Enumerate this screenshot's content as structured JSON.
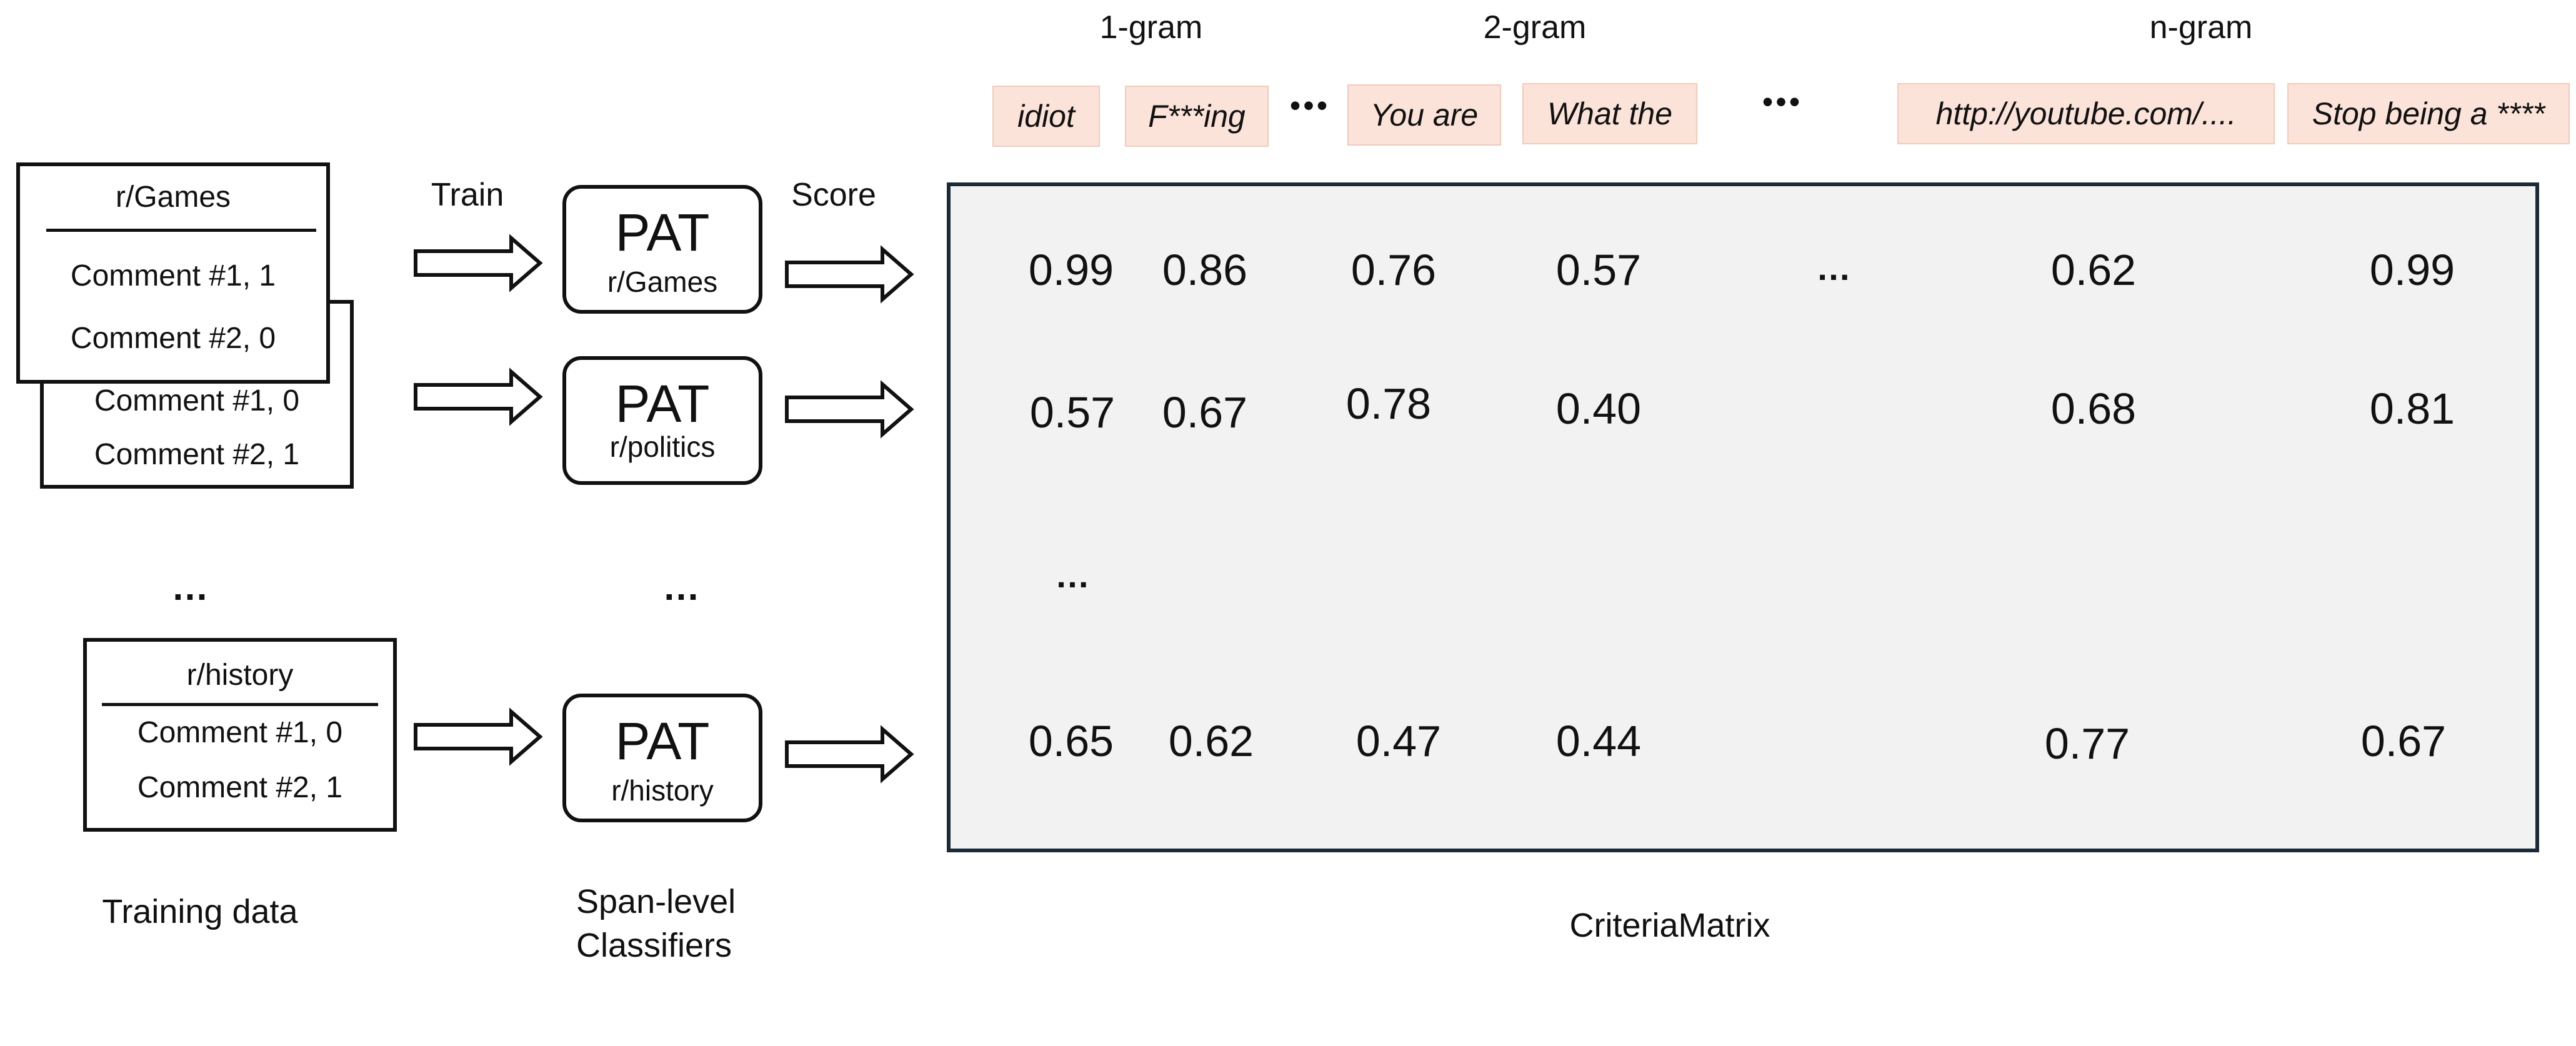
{
  "headers": {
    "gram1": "1-gram",
    "gram2": "2-gram",
    "gramn": "n-gram"
  },
  "chips": [
    {
      "text": "idiot"
    },
    {
      "text": "F***ing"
    },
    {
      "text": "You are"
    },
    {
      "text": "What the"
    },
    {
      "text": "http://youtube.com/...."
    },
    {
      "text": "Stop being a ****"
    }
  ],
  "ellipsis": "…",
  "ellipsis_bold": "•••",
  "flow_labels": {
    "train": "Train",
    "score": "Score"
  },
  "datasets": {
    "games": {
      "title": "r/Games",
      "c1": "Comment #1, 1",
      "c2": "Comment #2, 0"
    },
    "politics": {
      "c1": "Comment #1, 0",
      "c2": "Comment #2, 1"
    },
    "history": {
      "title": "r/history",
      "c1": "Comment #1, 0",
      "c2": "Comment #2, 1"
    }
  },
  "classifiers": {
    "pat": "PAT",
    "games": "r/Games",
    "politics": "r/politics",
    "history": "r/history"
  },
  "matrix": {
    "rows": [
      [
        "0.99",
        "0.86",
        "0.76",
        "0.57",
        "0.62",
        "0.99"
      ],
      [
        "0.57",
        "0.67",
        "0.78",
        "0.40",
        "0.68",
        "0.81"
      ],
      [
        "0.65",
        "0.62",
        "0.47",
        "0.44",
        "0.77",
        "0.67"
      ]
    ]
  },
  "captions": {
    "training": "Training data",
    "classifiers_1": "Span-level",
    "classifiers_2": "Classifiers",
    "matrix": "CriteriaMatrix"
  }
}
